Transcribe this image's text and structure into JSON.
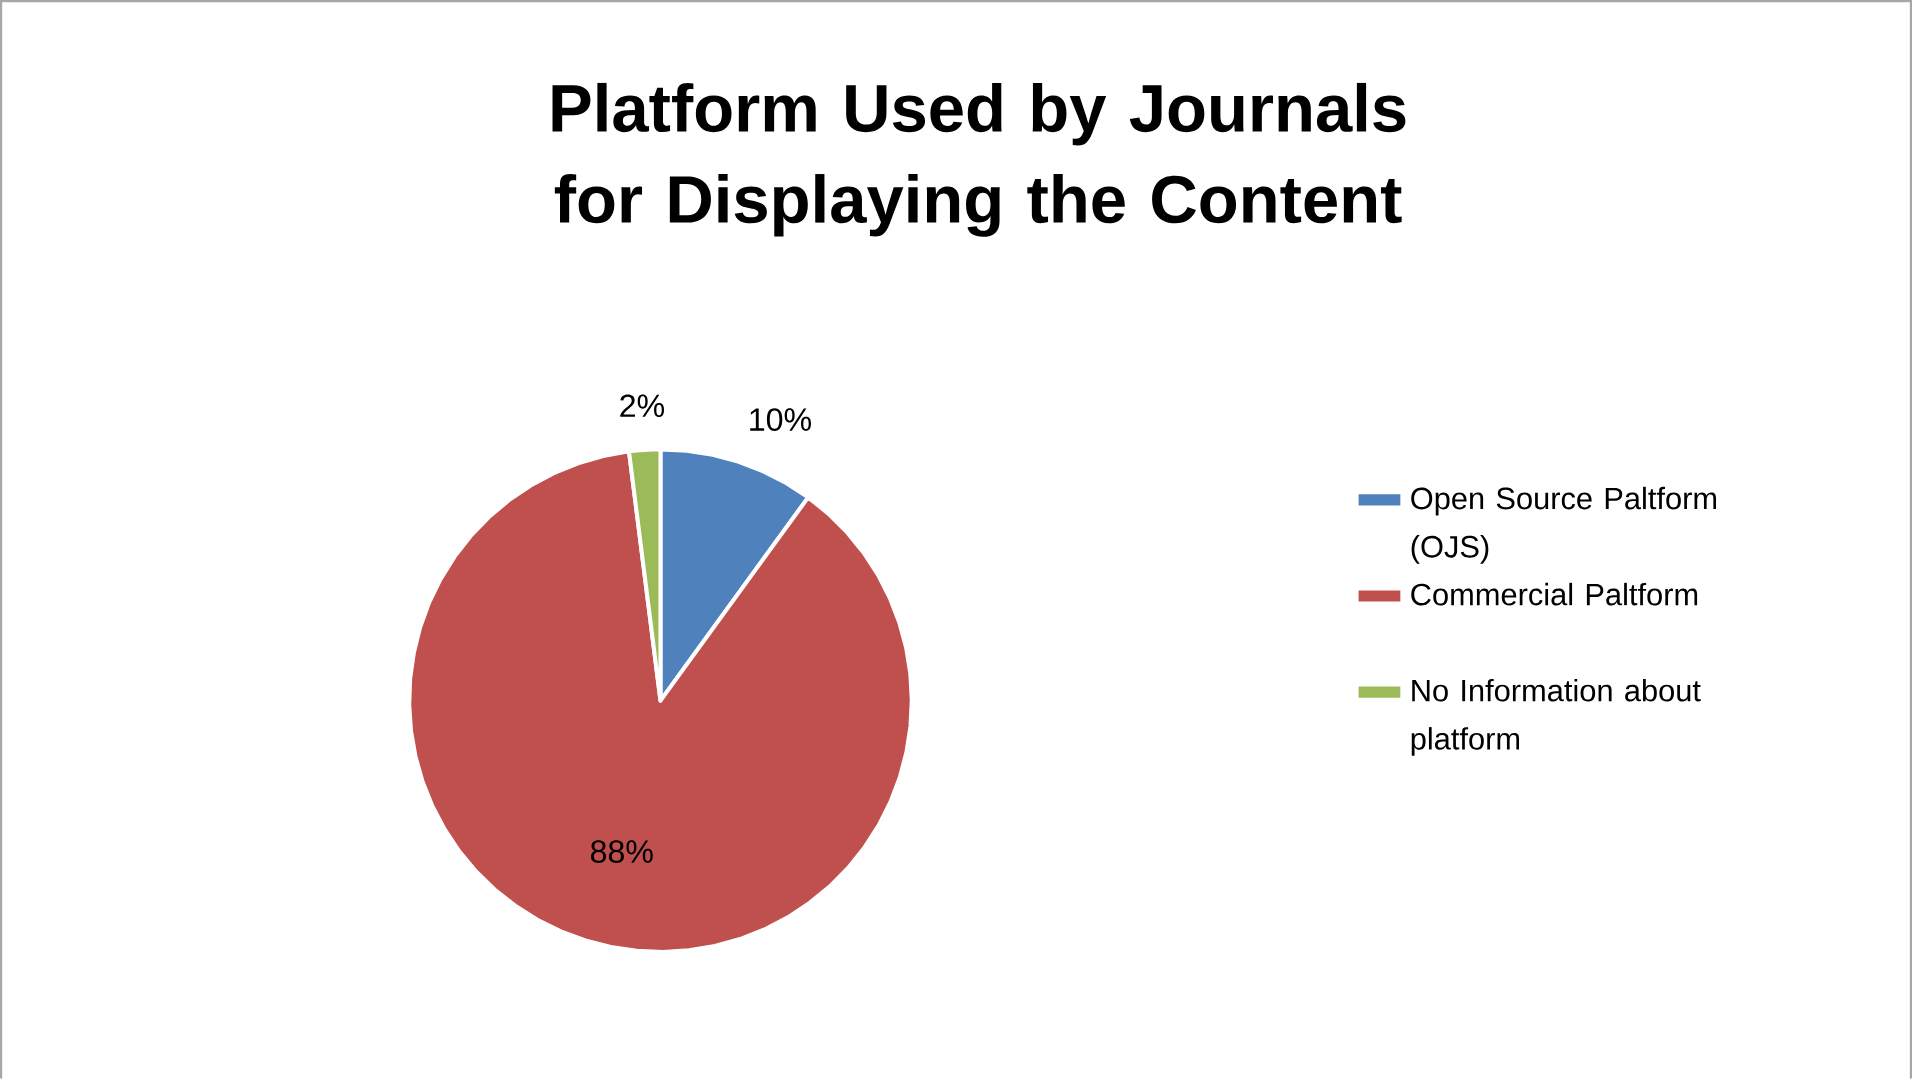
{
  "chart_data": {
    "type": "pie",
    "title": "Platform Used by Journals for Displaying the Content",
    "categories": [
      "Open Source Paltform (OJS)",
      "Commercial Paltform",
      "No Information about platform"
    ],
    "values": [
      10,
      88,
      2
    ],
    "colors": [
      "#4f81bd",
      "#c0504d",
      "#9bbb59"
    ],
    "value_labels": [
      "10%",
      "88%",
      "2%"
    ],
    "legend": "right"
  }
}
